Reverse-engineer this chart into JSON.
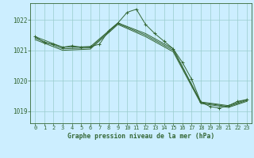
{
  "title": "Graphe pression niveau de la mer (hPa)",
  "background_color": "#cceeff",
  "grid_color": "#99cccc",
  "line_color": "#336633",
  "marker_color": "#336633",
  "xlim": [
    -0.5,
    23.5
  ],
  "ylim": [
    1018.6,
    1022.55
  ],
  "yticks": [
    1019,
    1020,
    1021,
    1022
  ],
  "xticks": [
    0,
    1,
    2,
    3,
    4,
    5,
    6,
    7,
    8,
    9,
    10,
    11,
    12,
    13,
    14,
    15,
    16,
    17,
    18,
    19,
    20,
    21,
    22,
    23
  ],
  "series1_x": [
    0,
    1,
    2,
    3,
    4,
    5,
    6,
    7,
    8,
    9,
    10,
    11,
    12,
    13,
    14,
    15,
    16,
    17,
    18,
    19,
    20,
    21,
    22,
    23
  ],
  "series1_y": [
    1021.45,
    1021.25,
    1021.2,
    1021.1,
    1021.15,
    1021.1,
    1021.12,
    1021.2,
    1021.65,
    1021.9,
    1022.25,
    1022.35,
    1021.85,
    1021.55,
    1021.3,
    1021.05,
    1020.6,
    1020.05,
    1019.3,
    1019.15,
    1019.1,
    1019.18,
    1019.32,
    1019.38
  ],
  "series2_x": [
    0,
    3,
    6,
    9,
    12,
    15,
    18,
    21,
    23
  ],
  "series2_y": [
    1021.45,
    1021.1,
    1021.12,
    1021.9,
    1021.55,
    1021.05,
    1019.3,
    1019.18,
    1019.38
  ],
  "series3_x": [
    0,
    3,
    6,
    9,
    12,
    15,
    18,
    21,
    23
  ],
  "series3_y": [
    1021.4,
    1021.05,
    1021.08,
    1021.88,
    1021.5,
    1021.0,
    1019.28,
    1019.15,
    1019.35
  ],
  "series4_x": [
    0,
    3,
    6,
    9,
    12,
    15,
    18,
    21,
    23
  ],
  "series4_y": [
    1021.35,
    1021.0,
    1021.04,
    1021.85,
    1021.45,
    1020.95,
    1019.25,
    1019.12,
    1019.32
  ]
}
